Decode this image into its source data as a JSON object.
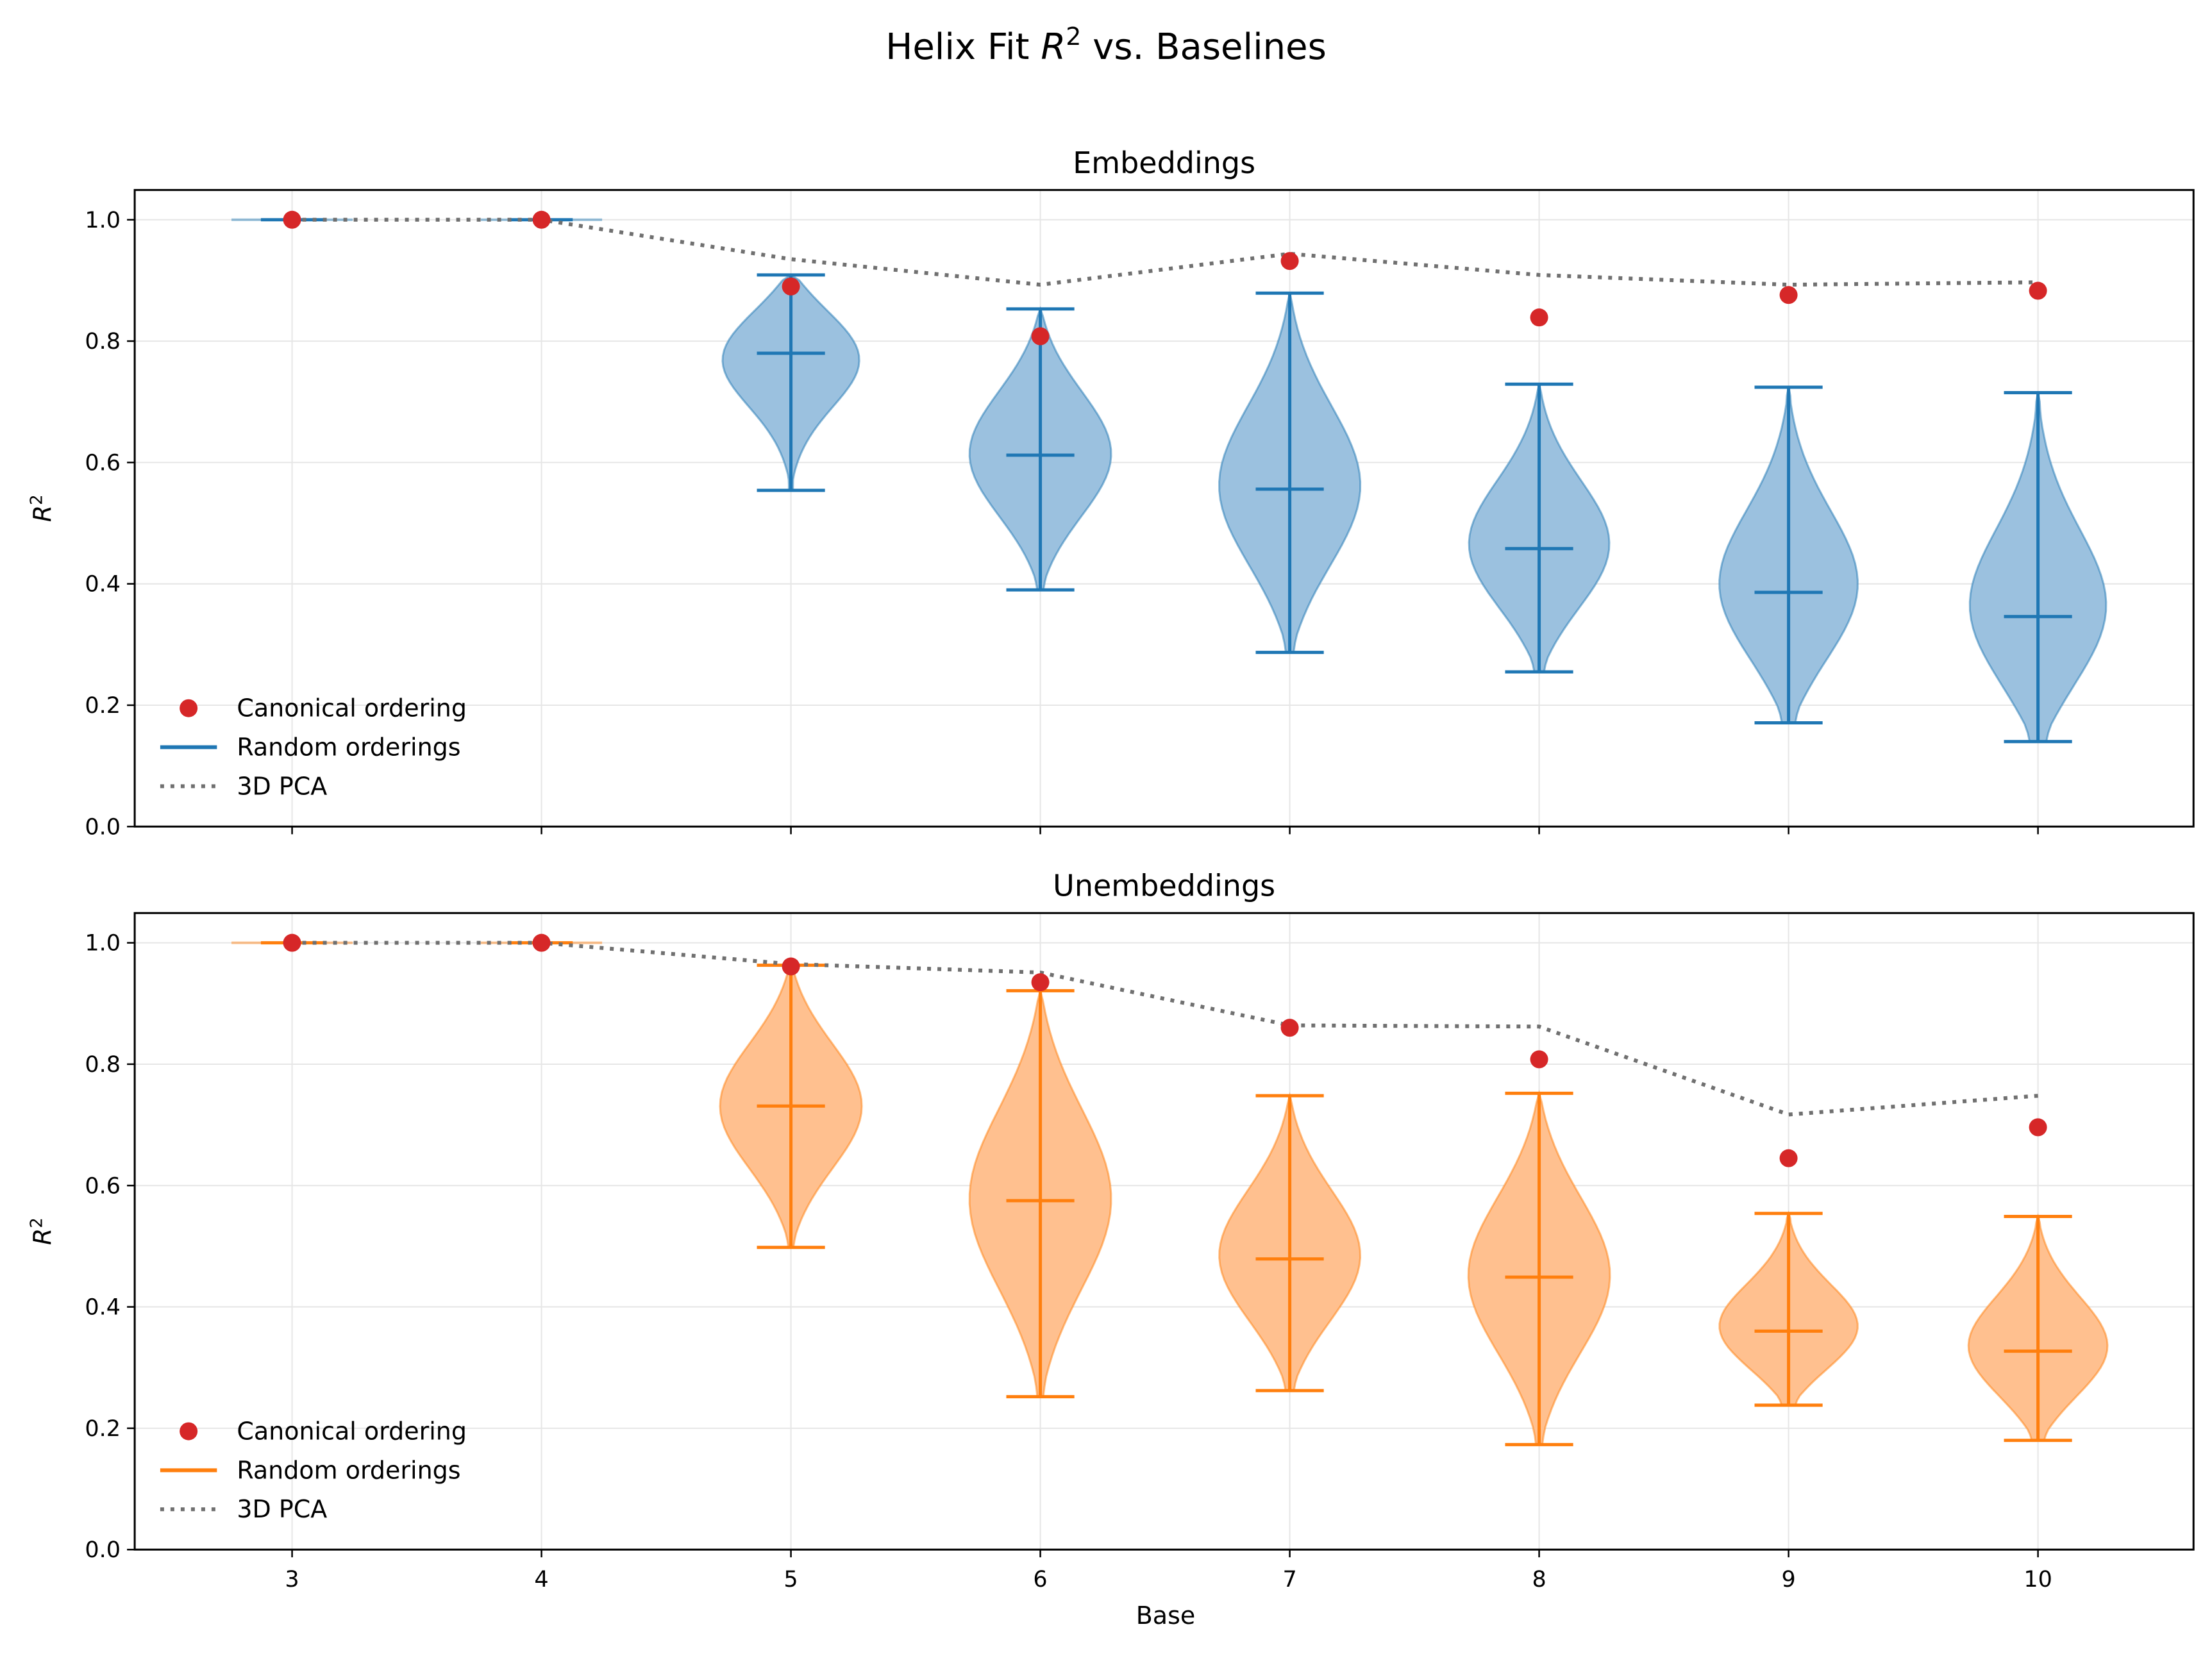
{
  "chart_data": {
    "type": "violin",
    "title": "Helix Fit R² vs. Baselines",
    "title_parts": {
      "prefix": "Helix Fit ",
      "var": "R",
      "sup": "2",
      "suffix": " vs. Baselines"
    },
    "xlabel": "Base",
    "x": [
      3,
      4,
      5,
      6,
      7,
      8,
      9,
      10
    ],
    "xtick_labels": [
      "3",
      "4",
      "5",
      "6",
      "7",
      "8",
      "9",
      "10"
    ],
    "ylim": [
      0.0,
      1.05
    ],
    "yticks": [
      0.0,
      0.2,
      0.4,
      0.6,
      0.8,
      1.0
    ],
    "ytick_labels": [
      "0.0",
      "0.2",
      "0.4",
      "0.6",
      "0.8",
      "1.0"
    ],
    "grid": true,
    "legend_placement": "lower-left",
    "legend": [
      "Canonical ordering",
      "Random orderings",
      "3D PCA"
    ],
    "panels": [
      {
        "title": "Embeddings",
        "ylabel_var": "R",
        "ylabel_sup": "2",
        "color": "#1f77b4",
        "fill": "#9bc1df",
        "random_orderings": {
          "max": [
            1.0,
            1.0,
            0.909,
            0.853,
            0.879,
            0.729,
            0.724,
            0.715
          ],
          "mean": [
            1.0,
            1.0,
            0.78,
            0.612,
            0.556,
            0.458,
            0.386,
            0.346
          ],
          "min": [
            1.0,
            1.0,
            0.554,
            0.39,
            0.287,
            0.255,
            0.171,
            0.14
          ]
        },
        "canonical_ordering": [
          1.0,
          1.0,
          0.89,
          0.808,
          0.932,
          0.839,
          0.876,
          0.883
        ],
        "pca_3d": [
          1.0,
          1.0,
          0.935,
          0.893,
          0.944,
          0.909,
          0.893,
          0.897
        ]
      },
      {
        "title": "Unembeddings",
        "ylabel_var": "R",
        "ylabel_sup": "2",
        "color": "#ff7f0e",
        "fill": "#ffc08f",
        "random_orderings": {
          "max": [
            1.0,
            1.0,
            0.963,
            0.921,
            0.748,
            0.752,
            0.554,
            0.549
          ],
          "mean": [
            1.0,
            1.0,
            0.731,
            0.575,
            0.479,
            0.449,
            0.36,
            0.327
          ],
          "min": [
            1.0,
            1.0,
            0.498,
            0.252,
            0.262,
            0.173,
            0.238,
            0.18
          ]
        },
        "canonical_ordering": [
          1.0,
          1.0,
          0.961,
          0.935,
          0.86,
          0.808,
          0.645,
          0.696
        ],
        "pca_3d": [
          1.0,
          1.0,
          0.965,
          0.951,
          0.864,
          0.862,
          0.717,
          0.748
        ]
      }
    ],
    "colors": {
      "canonical": "#d62728",
      "pca": "#707070",
      "grid": "#e6e6e6"
    }
  }
}
